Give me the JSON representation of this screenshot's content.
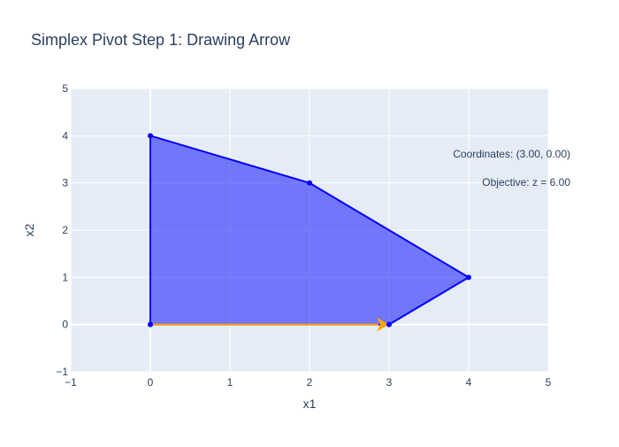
{
  "chart_data": {
    "type": "scatter",
    "title": "Simplex Pivot Step 1: Drawing Arrow",
    "xlabel": "x1",
    "ylabel": "x2",
    "xlim": [
      -1,
      5
    ],
    "ylim": [
      -1,
      5
    ],
    "x_ticks": [
      -1,
      0,
      1,
      2,
      3,
      4,
      5
    ],
    "y_ticks": [
      -1,
      0,
      1,
      2,
      3,
      4,
      5
    ],
    "x_tick_labels": [
      "−1",
      "0",
      "1",
      "2",
      "3",
      "4",
      "5"
    ],
    "y_tick_labels": [
      "−1",
      "0",
      "1",
      "2",
      "3",
      "4",
      "5"
    ],
    "grid": true,
    "series": [
      {
        "type": "polygon",
        "fill": "rgba(0, 0, 255, 0.5)",
        "stroke": "#0000ff",
        "points": [
          {
            "x": 0,
            "y": 0
          },
          {
            "x": 0,
            "y": 4
          },
          {
            "x": 2,
            "y": 3
          },
          {
            "x": 4,
            "y": 1
          },
          {
            "x": 3,
            "y": 0
          },
          {
            "x": 0,
            "y": 0
          }
        ]
      },
      {
        "type": "arrow",
        "color": "#ffa500",
        "from": {
          "x": 0,
          "y": 0
        },
        "to": {
          "x": 3,
          "y": 0
        }
      }
    ],
    "annotations": [
      {
        "text": "Coordinates: (3.00, 0.00)",
        "align": "right"
      },
      {
        "text": "Objective: z = 6.00",
        "align": "right"
      }
    ]
  },
  "colors": {
    "plot_background": "#e5ecf6",
    "grid": "#ffffff",
    "text": "#2a3f5f",
    "feasible_region": "#0000ff",
    "arrow": "#ffa500"
  }
}
